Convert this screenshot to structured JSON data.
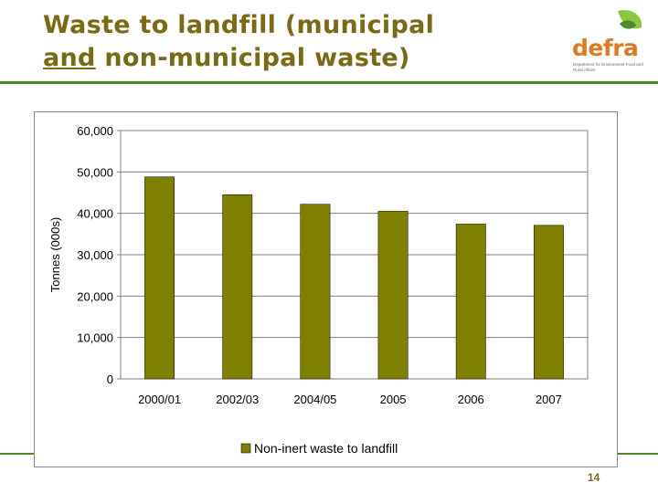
{
  "slide": {
    "title_line1": "Waste to landfill (municipal",
    "title_line2_underlined": "and",
    "title_line2_rest": " non-municipal waste)",
    "page_number": "14"
  },
  "logo": {
    "name": "defra",
    "tagline": "Department for Environment Food and Rural Affairs"
  },
  "colors": {
    "title": "#7a6a14",
    "rule": "#4d8a2c",
    "bar": "#808000",
    "logo_orange": "#e07a20",
    "logo_green": "#8dc63f"
  },
  "chart_data": {
    "type": "bar",
    "categories": [
      "2000/01",
      "2002/03",
      "2004/05",
      "2005",
      "2006",
      "2007"
    ],
    "series": [
      {
        "name": "Non-inert waste to landfill",
        "values": [
          48800,
          44500,
          42200,
          40500,
          37400,
          37100
        ]
      }
    ],
    "ylabel": "Tonnes (000s)",
    "xlabel": "",
    "ylim": [
      0,
      60000
    ],
    "yticks": [
      0,
      10000,
      20000,
      30000,
      40000,
      50000,
      60000
    ],
    "ytick_labels": [
      "0",
      "10,000",
      "20,000",
      "30,000",
      "40,000",
      "50,000",
      "60,000"
    ],
    "gridlines": true,
    "legend": "bottom"
  }
}
